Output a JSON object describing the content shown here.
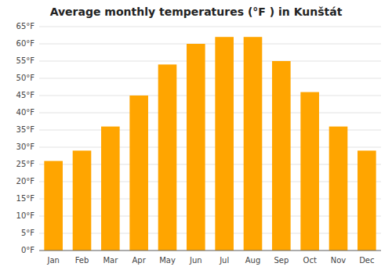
{
  "chart_data": {
    "type": "bar",
    "title": "Average monthly temperatures (°F ) in Kunštát",
    "categories": [
      "Jan",
      "Feb",
      "Mar",
      "Apr",
      "May",
      "Jun",
      "Jul",
      "Aug",
      "Sep",
      "Oct",
      "Nov",
      "Dec"
    ],
    "values": [
      26,
      29,
      36,
      45,
      54,
      60,
      62,
      62,
      55,
      46,
      36,
      29
    ],
    "color": "#FFA500",
    "ylim": [
      0,
      65
    ],
    "yticks": [
      {
        "value": 0,
        "label": "0°F"
      },
      {
        "value": 5,
        "label": "5°F"
      },
      {
        "value": 10,
        "label": "10°F"
      },
      {
        "value": 15,
        "label": "15°F"
      },
      {
        "value": 20,
        "label": "20°F"
      },
      {
        "value": 25,
        "label": "25°F"
      },
      {
        "value": 30,
        "label": "30°F"
      },
      {
        "value": 35,
        "label": "35°F"
      },
      {
        "value": 40,
        "label": "40°F"
      },
      {
        "value": 45,
        "label": "45°F"
      },
      {
        "value": 50,
        "label": "50°F"
      },
      {
        "value": 55,
        "label": "55°F"
      },
      {
        "value": 60,
        "label": "60°F"
      },
      {
        "value": 65,
        "label": "65°F"
      }
    ],
    "grid": true
  }
}
